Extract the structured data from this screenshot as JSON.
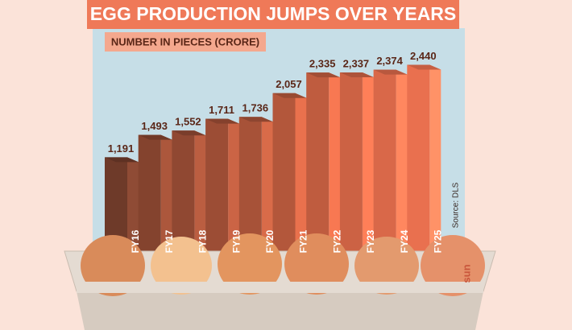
{
  "chart_data": {
    "type": "bar3d",
    "title": "EGG PRODUCTION JUMPS OVER YEARS",
    "subtitle": "NUMBER IN PIECES (CRORE)",
    "source": "Source: DLS",
    "logo": "sun",
    "categories": [
      "FY16",
      "FY17",
      "FY18",
      "FY19",
      "FY20",
      "FY21",
      "FY22",
      "FY23",
      "FY24",
      "FY25"
    ],
    "values": [
      1191,
      1493,
      1552,
      1711,
      1736,
      2057,
      2335,
      2337,
      2374,
      2440
    ],
    "value_labels": [
      "1,191",
      "1,493",
      "1,552",
      "1,711",
      "1,736",
      "2,057",
      "2,335",
      "2,337",
      "2,374",
      "2,440"
    ],
    "colors": [
      "#6e3a29",
      "#84432e",
      "#904832",
      "#9c4d35",
      "#a75238",
      "#b3573b",
      "#bf5c3f",
      "#cc6244",
      "#d96849",
      "#e9704f"
    ]
  }
}
